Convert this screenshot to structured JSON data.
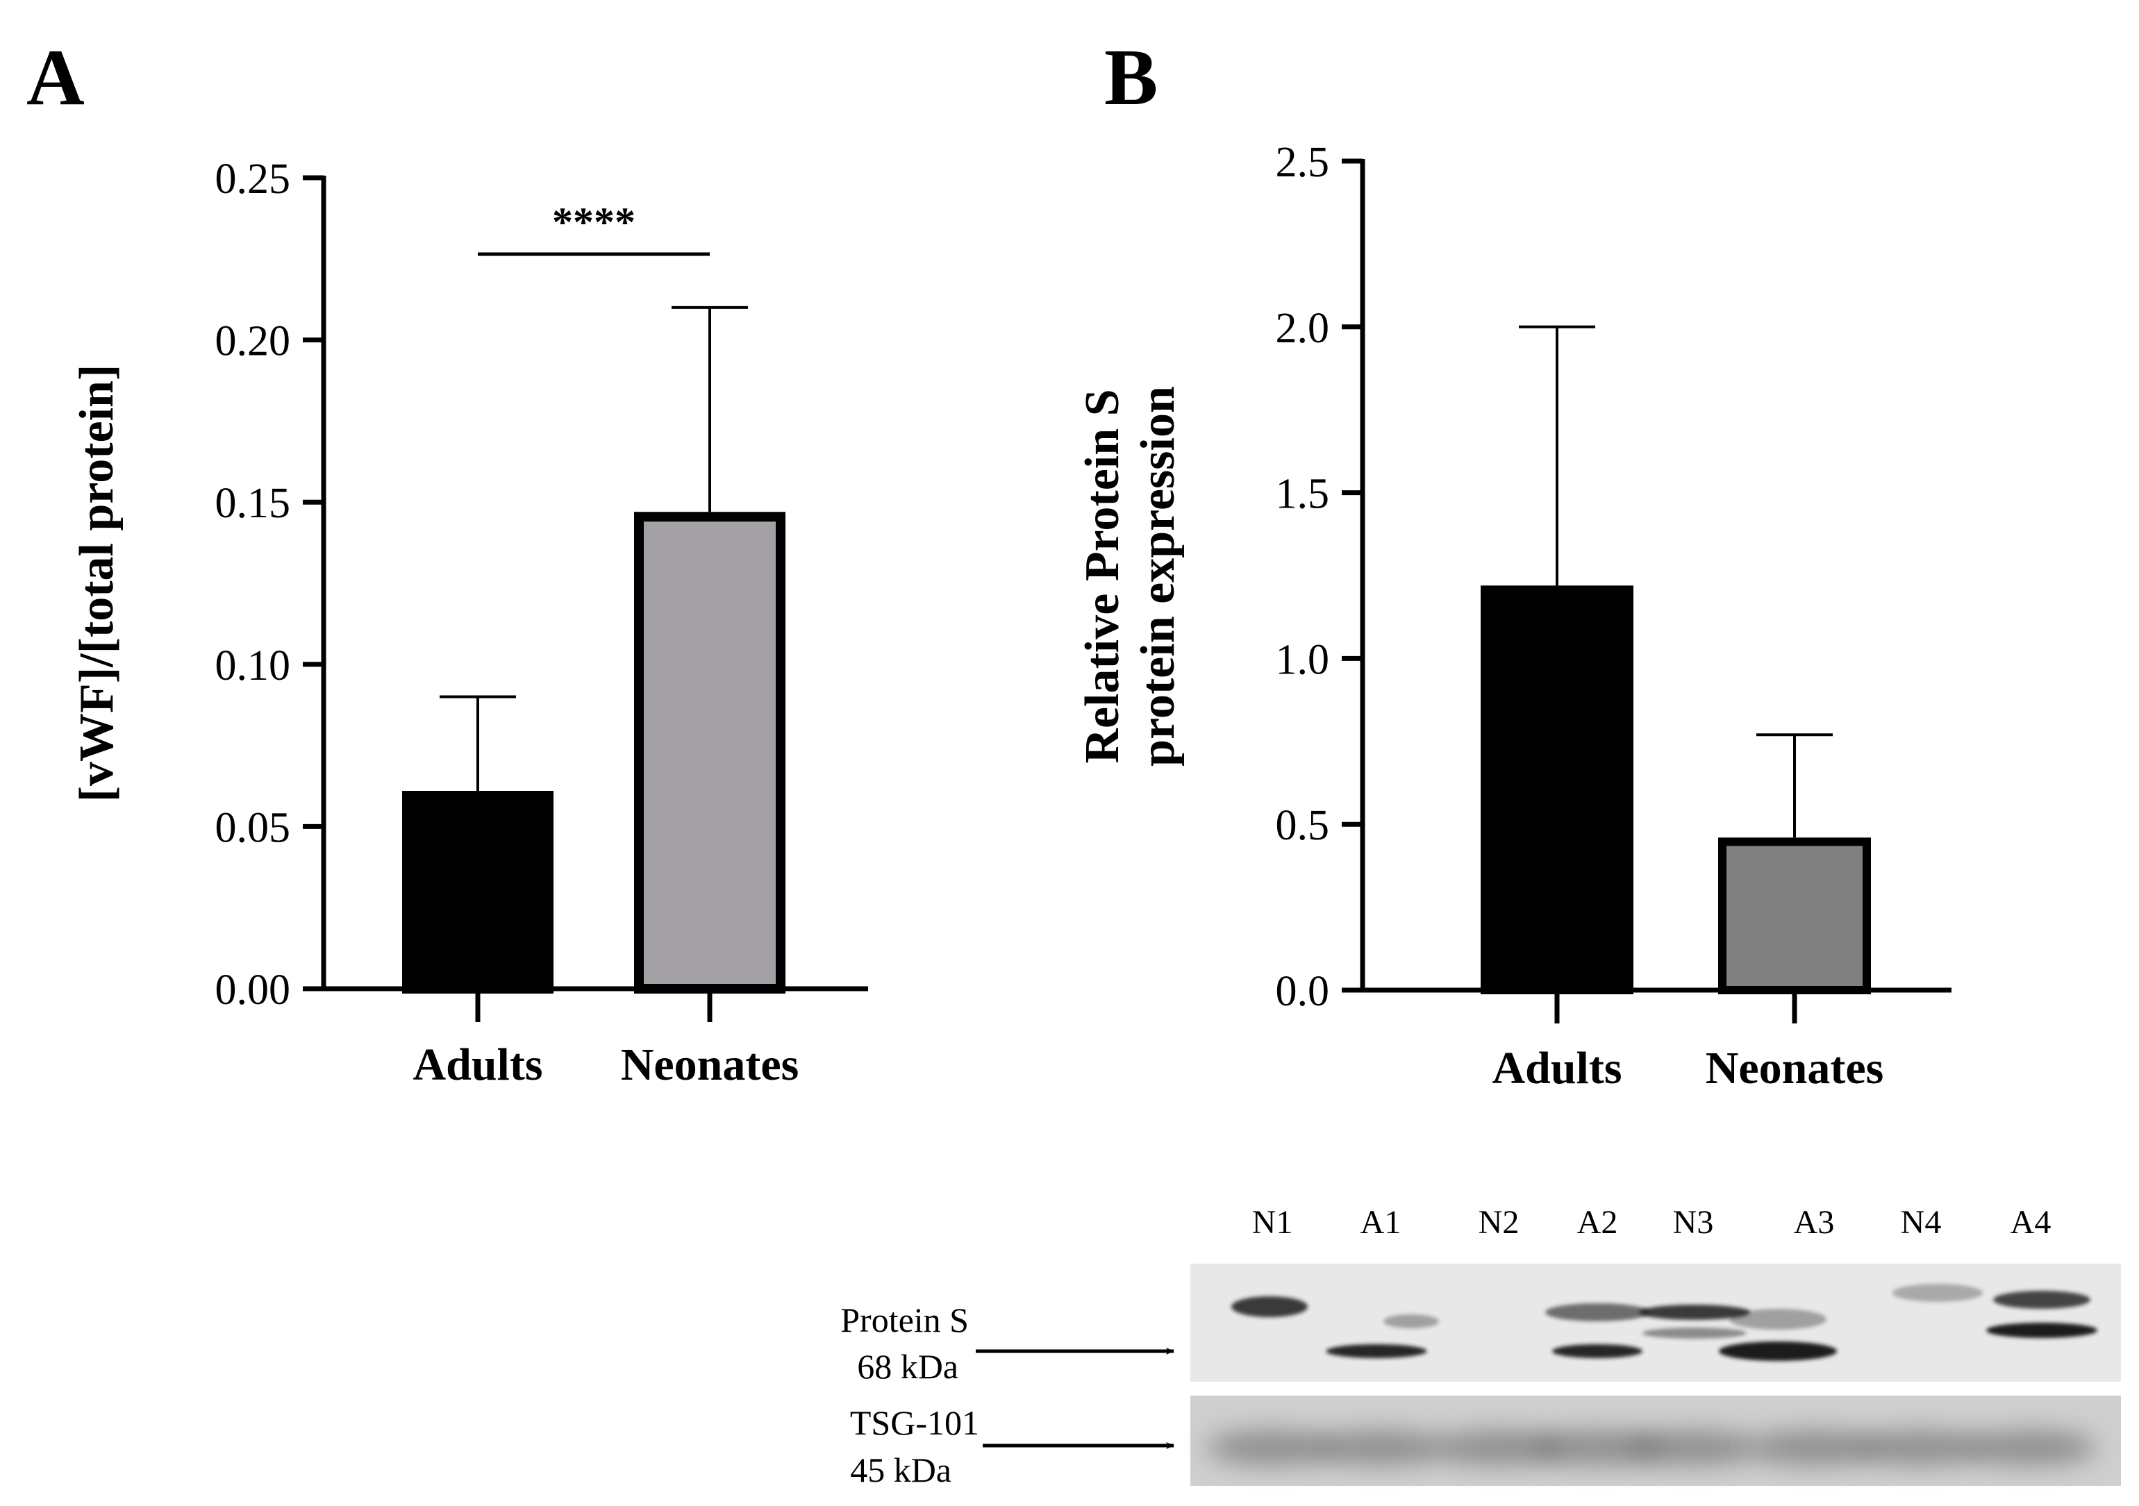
{
  "panels": {
    "a": {
      "letter": "A"
    },
    "b": {
      "letter": "B"
    }
  },
  "chart_data": [
    {
      "type": "bar",
      "panel": "A",
      "categories": [
        "Adults",
        "Neonates"
      ],
      "values": [
        0.061,
        0.147
      ],
      "errors": [
        0.029,
        0.063
      ],
      "colors": [
        "#000000",
        "#a3a1a6"
      ],
      "ylabel": "[vWF]/[total protein]",
      "ylim": [
        0,
        0.25
      ],
      "yticks": [
        0.0,
        0.05,
        0.1,
        0.15,
        0.2,
        0.25
      ],
      "ytick_labels": [
        "0.00",
        "0.05",
        "0.10",
        "0.15",
        "0.20",
        "0.25"
      ],
      "significance": {
        "label": "****",
        "between": [
          "Adults",
          "Neonates"
        ]
      },
      "grid": false
    },
    {
      "type": "bar",
      "panel": "B",
      "categories": [
        "Adults",
        "Neonates"
      ],
      "values": [
        1.22,
        0.46
      ],
      "errors": [
        0.78,
        0.31
      ],
      "colors": [
        "#000000",
        "#808080"
      ],
      "ylabel_lines": [
        "Relative Protein S",
        "protein expression"
      ],
      "ylim": [
        0,
        2.5
      ],
      "yticks": [
        0.0,
        0.5,
        1.0,
        1.5,
        2.0,
        2.5
      ],
      "ytick_labels": [
        "0.0",
        "0.5",
        "1.0",
        "1.5",
        "2.0",
        "2.5"
      ],
      "grid": false
    }
  ],
  "blot": {
    "lanes": [
      "N1",
      "A1",
      "N2",
      "A2",
      "N3",
      "A3",
      "N4",
      "A4"
    ],
    "protein_s": {
      "name": "Protein S",
      "size": "68 kDa"
    },
    "tsg101": {
      "name": "TSG-101",
      "size": "45 kDa"
    }
  }
}
